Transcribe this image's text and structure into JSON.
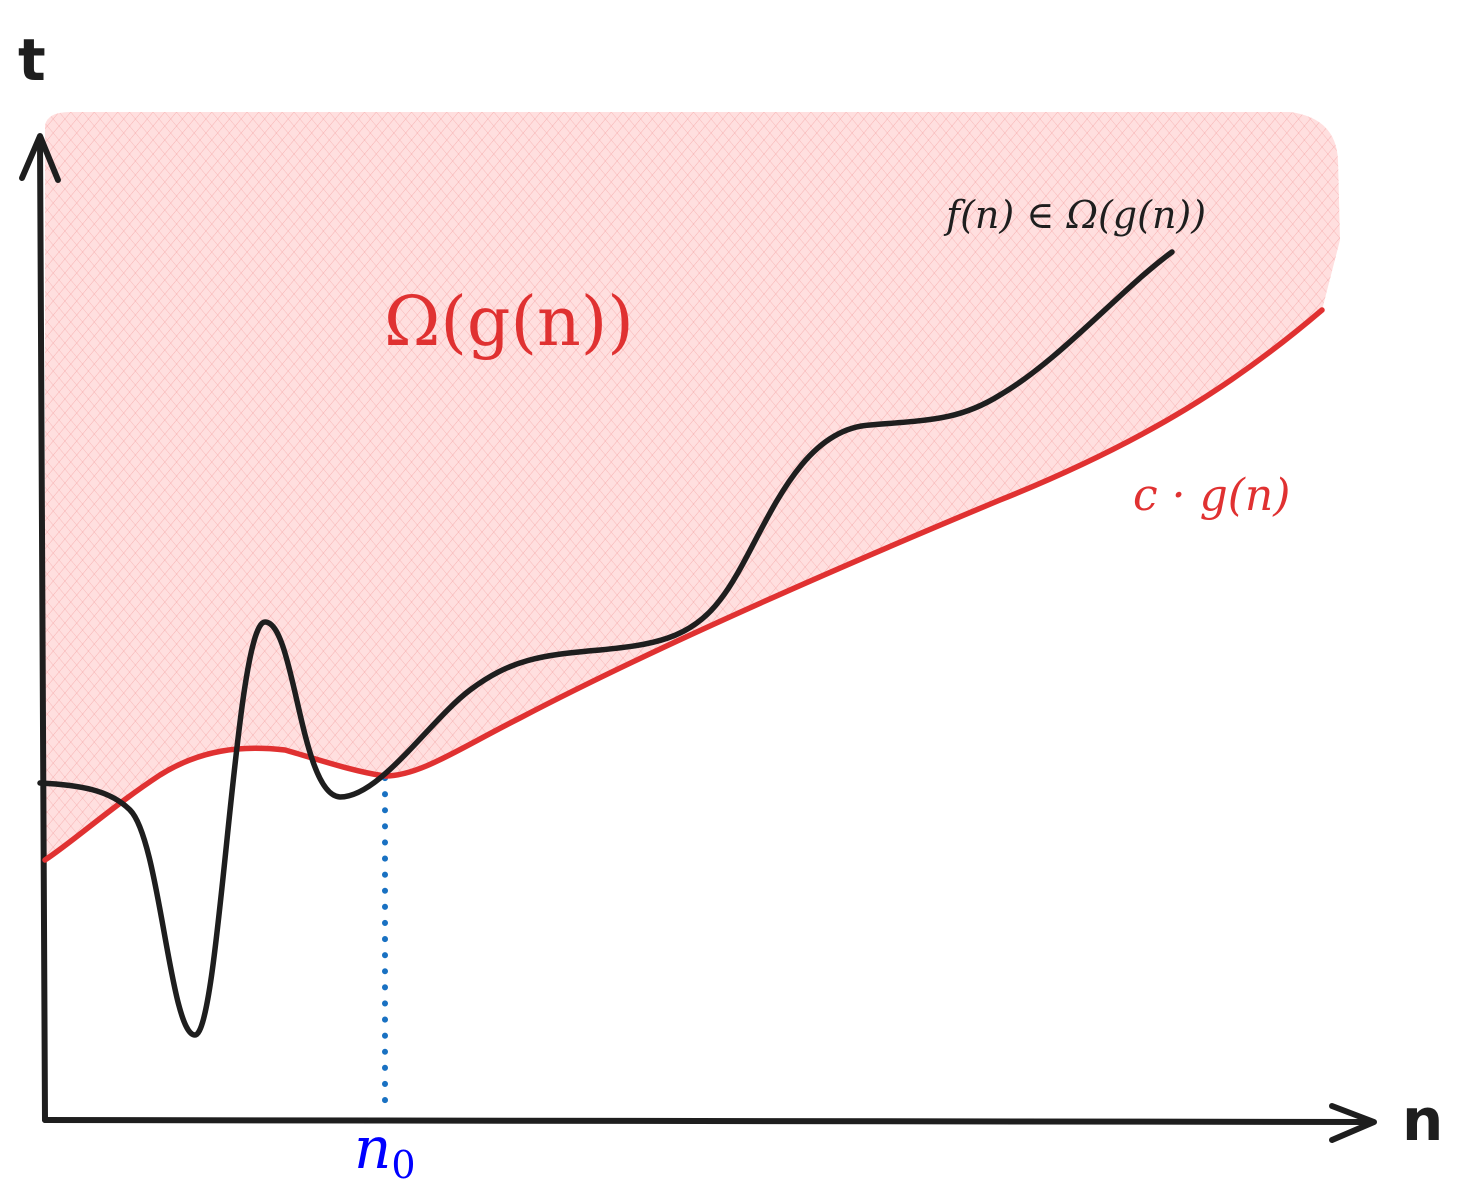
{
  "axes": {
    "y_label": "t",
    "x_label": "n"
  },
  "labels": {
    "region_label": "Ω(g(n))",
    "f_label": "f(n) ∈ Ω(g(n))",
    "bound_label": "c · g(n)",
    "n0_main": "n",
    "n0_sub": "0"
  },
  "colors": {
    "axis": "#1e1e1e",
    "region_fill": "#ffc9c9",
    "region_hatch": "#f08c8c",
    "bound_curve": "#e03131",
    "f_curve": "#1e1e1e",
    "n0_marker": "#1971c2",
    "n0_label": "#0000ff",
    "region_label": "#e03131",
    "bound_label": "#e03131",
    "f_label": "#1e1e1e"
  }
}
